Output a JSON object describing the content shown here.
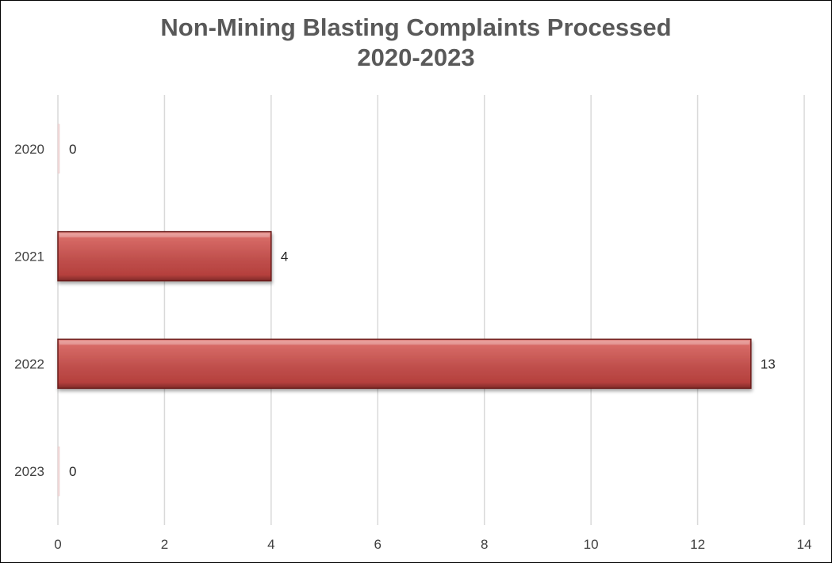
{
  "chart_data": {
    "type": "bar",
    "orientation": "horizontal",
    "title": [
      "Non-Mining Blasting Complaints Processed",
      "2020-2023"
    ],
    "categories": [
      "2020",
      "2021",
      "2022",
      "2023"
    ],
    "values": [
      0,
      4,
      13,
      0
    ],
    "data_labels": [
      "0",
      "4",
      "13",
      "0"
    ],
    "xlim": [
      0,
      14
    ],
    "xticks": [
      0,
      2,
      4,
      6,
      8,
      10,
      12,
      14
    ],
    "xtick_labels": [
      "0",
      "2",
      "4",
      "6",
      "8",
      "10",
      "12",
      "14"
    ],
    "grid": true,
    "legend": "none",
    "colors": {
      "bar": "#c0504d",
      "bar_light": "#e07a76",
      "bar_dark": "#7f2a28",
      "gridline": "#d9d9d9",
      "title": "#595959"
    }
  }
}
